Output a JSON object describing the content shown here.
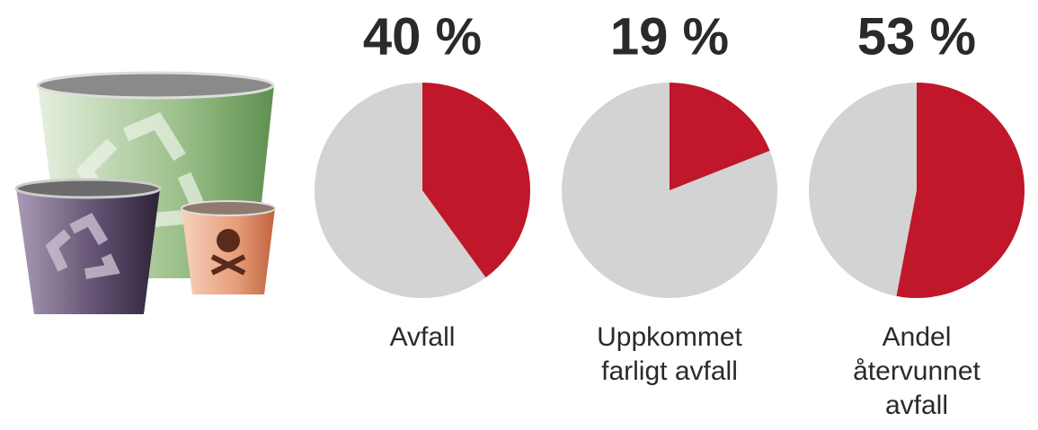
{
  "chart_data": [
    {
      "type": "pie",
      "values": [
        40
      ],
      "value_labels": [
        "40 %"
      ],
      "label": "Avfall",
      "color": "#c0172a",
      "rest_color": "#d3d3d3"
    },
    {
      "type": "pie",
      "values": [
        19
      ],
      "value_labels": [
        "19 %"
      ],
      "label": "Uppkommet farligt avfall",
      "color": "#c0172a",
      "rest_color": "#d3d3d3"
    },
    {
      "type": "pie",
      "values": [
        53
      ],
      "value_labels": [
        "53 %"
      ],
      "label": "Andel återvunnet avfall",
      "color": "#c0172a",
      "rest_color": "#d3d3d3"
    }
  ]
}
